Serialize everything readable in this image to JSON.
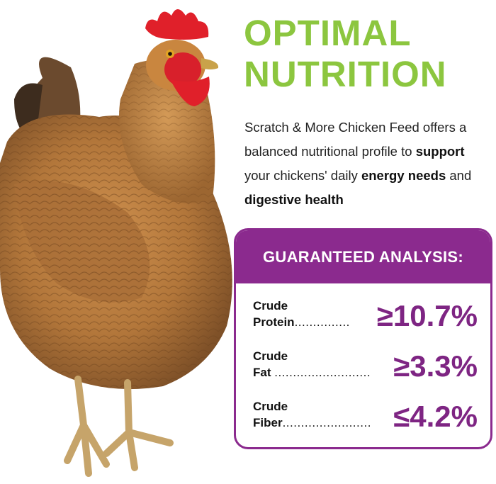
{
  "headline": {
    "line1": "OPTIMAL",
    "line2": "NUTRITION"
  },
  "description": {
    "part1": "Scratch & More Chicken Feed offers a balanced nutritional profile to ",
    "bold1": "support",
    "part2": " your chickens' daily ",
    "bold2": "energy needs",
    "part3": " and ",
    "bold3": "digestive health"
  },
  "analysis": {
    "title": "GUARANTEED ANALYSIS:",
    "rows": [
      {
        "label_line1": "Crude",
        "label_line2": "Protein",
        "dots": "...............",
        "value": "≥10.7%"
      },
      {
        "label_line1": "Crude",
        "label_line2": "Fat",
        "dots": "..........................",
        "value": "≥3.3%"
      },
      {
        "label_line1": "Crude",
        "label_line2": "Fiber",
        "dots": "........................",
        "value": "≤4.2%"
      }
    ]
  },
  "colors": {
    "headline_green": "#8cc63f",
    "accent_purple": "#8b2a8e",
    "hen_body": "#b97a3c",
    "comb_red": "#e0202a"
  },
  "image": {
    "subject": "hen-illustration"
  }
}
